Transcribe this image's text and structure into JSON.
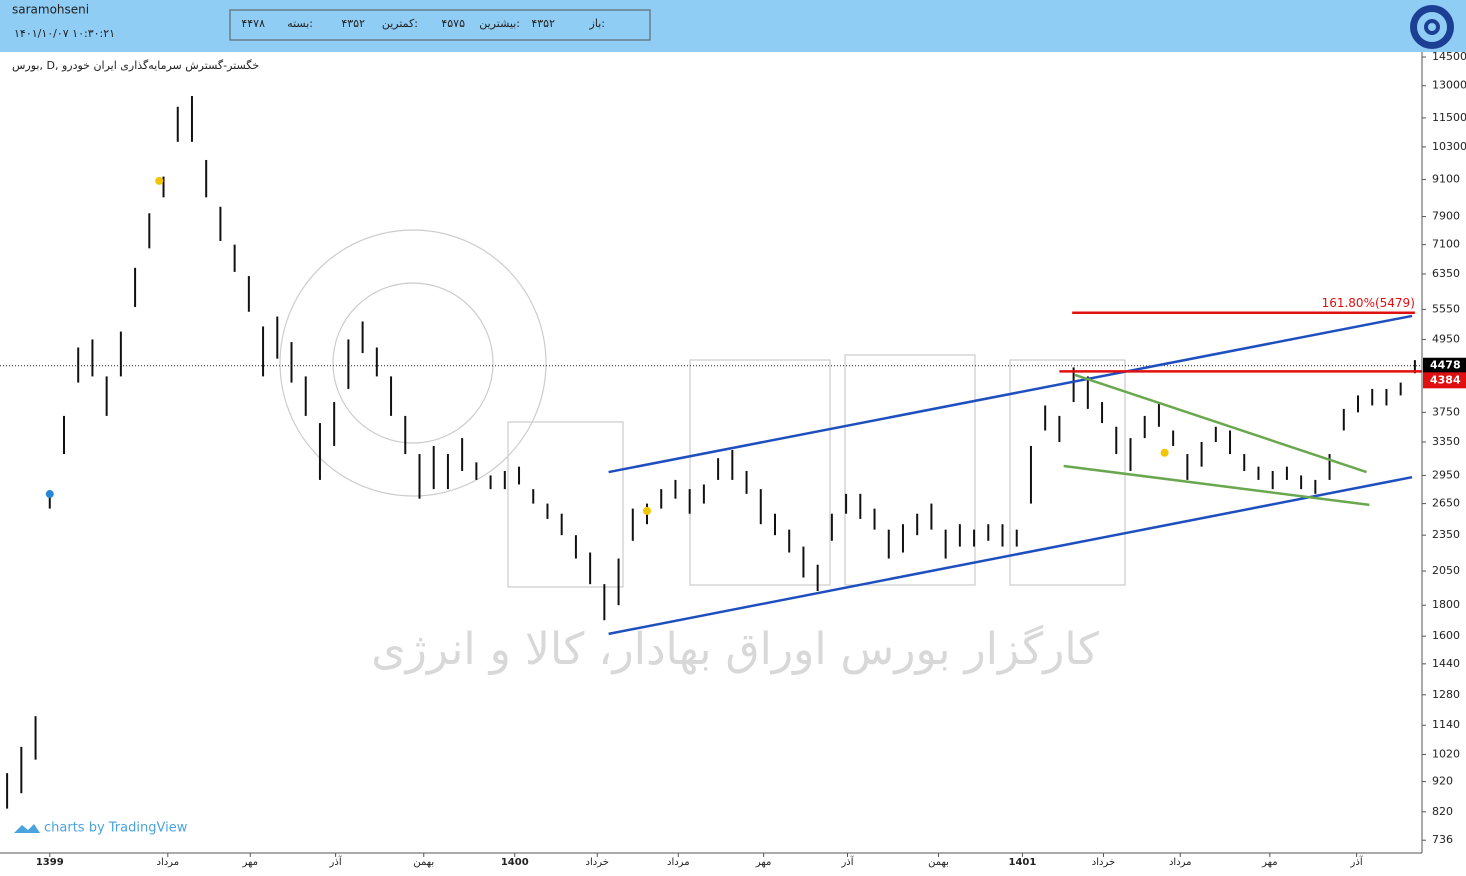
{
  "header": {
    "user": "saramohseni",
    "datetime": "۱۴۰۱/۱۰/۰۷ ۱۰:۳۰:۲۱",
    "stats": [
      {
        "label": "باز:",
        "value": "۴۳۵۲"
      },
      {
        "label": "بیشترین:",
        "value": "۴۵۷۵"
      },
      {
        "label": "کمترین:",
        "value": "۴۳۵۲"
      },
      {
        "label": "بسته:",
        "value": "۴۴۷۸"
      }
    ]
  },
  "watermark": "کارگزار بورس اوراق بهادار، کالا و انرژی",
  "branding": "charts by TradingView",
  "chart_data": {
    "type": "ohlc",
    "title": "بورس, D, خگستر-گسترش سرمایه‌گذاری ایران خودرو",
    "log_scale": true,
    "color": "#111111",
    "xlim": [
      0,
      100
    ],
    "ylim": [
      701,
      14780
    ],
    "xticks": [
      {
        "value": 3.5,
        "label": "1399"
      },
      {
        "value": 11.8,
        "label": "مرداد"
      },
      {
        "value": 17.6,
        "label": "مهر"
      },
      {
        "value": 23.6,
        "label": "آذر"
      },
      {
        "value": 29.8,
        "label": "بهمن"
      },
      {
        "value": 36.2,
        "label": "1400"
      },
      {
        "value": 42.0,
        "label": "خرداد"
      },
      {
        "value": 47.7,
        "label": "مرداد"
      },
      {
        "value": 53.7,
        "label": "مهر"
      },
      {
        "value": 59.6,
        "label": "آذر"
      },
      {
        "value": 66.0,
        "label": "بهمن"
      },
      {
        "value": 71.9,
        "label": "1401"
      },
      {
        "value": 77.6,
        "label": "خرداد"
      },
      {
        "value": 83.0,
        "label": "مرداد"
      },
      {
        "value": 89.3,
        "label": "مهر"
      },
      {
        "value": 95.4,
        "label": "آذر"
      }
    ],
    "yticks": [
      14500,
      13000,
      11500,
      10300,
      9100,
      7900,
      7100,
      6350,
      5550,
      4950,
      3750,
      3350,
      2950,
      2650,
      2350,
      2050,
      1800,
      1600,
      1440,
      1280,
      1140,
      1020,
      920,
      820,
      736
    ],
    "low": [
      830,
      880,
      1000,
      2600,
      3200,
      4200,
      4300,
      3700,
      4300,
      5600,
      7000,
      8500,
      10500,
      10500,
      8500,
      7200,
      6400,
      5500,
      4300,
      4600,
      4200,
      3700,
      2900,
      3300,
      4100,
      4700,
      4300,
      3700,
      3200,
      2700,
      2800,
      2800,
      3000,
      2900,
      2800,
      2800,
      2850,
      2650,
      2500,
      2350,
      2150,
      1950,
      1700,
      1800,
      2300,
      2450,
      2600,
      2700,
      2550,
      2650,
      2900,
      2900,
      2750,
      2450,
      2350,
      2200,
      2000,
      1900,
      2300,
      2550,
      2500,
      2400,
      2150,
      2200,
      2350,
      2400,
      2150,
      2250,
      2250,
      2300,
      2250,
      2250,
      2650,
      3500,
      3350,
      3900,
      3800,
      3600,
      3200,
      3000,
      3400,
      3550,
      3300,
      2900,
      3050,
      3350,
      3200,
      3000,
      2900,
      2800,
      2900,
      2800,
      2750,
      2900,
      3500,
      3750,
      3850,
      3850,
      4000,
      4352
    ],
    "high": [
      950,
      1050,
      1180,
      2780,
      3700,
      4800,
      4950,
      4300,
      5100,
      6500,
      8000,
      9200,
      12000,
      12500,
      9800,
      8200,
      7100,
      6300,
      5200,
      5400,
      4900,
      4300,
      3600,
      3900,
      4950,
      5300,
      4800,
      4300,
      3700,
      3200,
      3300,
      3200,
      3400,
      3100,
      2950,
      3000,
      3050,
      2800,
      2650,
      2550,
      2350,
      2200,
      1950,
      2150,
      2600,
      2650,
      2800,
      2900,
      2800,
      2850,
      3150,
      3250,
      3000,
      2800,
      2550,
      2400,
      2250,
      2100,
      2550,
      2750,
      2750,
      2600,
      2400,
      2450,
      2550,
      2650,
      2400,
      2450,
      2400,
      2450,
      2450,
      2400,
      3300,
      3850,
      3700,
      4450,
      4300,
      3900,
      3550,
      3400,
      3700,
      3900,
      3500,
      3200,
      3350,
      3550,
      3500,
      3200,
      3050,
      3000,
      3050,
      2950,
      2900,
      3200,
      3800,
      4000,
      4100,
      4100,
      4200,
      4575
    ],
    "last_price": 4478,
    "trendlines": [
      {
        "color": "#1f4fbf",
        "x": [
          42.8,
          99.3
        ],
        "y": [
          2988,
          5413
        ]
      },
      {
        "color": "#1f4fbf",
        "x": [
          42.8,
          99.3
        ],
        "y": [
          1614,
          2930
        ]
      },
      {
        "color": "#6aa84f",
        "x": [
          75.6,
          96.1
        ],
        "y": [
          4324,
          2988
        ]
      },
      {
        "color": "#6aa84f",
        "x": [
          74.8,
          96.3
        ],
        "y": [
          3058,
          2637
        ]
      }
    ],
    "levels": [
      {
        "value": 5479,
        "label": "161.80%(5479)",
        "color": "#e01010",
        "x": [
          75.4,
          99.5
        ]
      },
      {
        "value": 4384,
        "color": "#e01010",
        "x": [
          74.5,
          100
        ]
      }
    ],
    "markers": [
      {
        "x": 3.5,
        "y": 2748,
        "color": "#2a86d6"
      },
      {
        "x": 11.2,
        "y": 9050,
        "color": "#f2c500"
      },
      {
        "x": 45.5,
        "y": 2577,
        "color": "#f2c500"
      },
      {
        "x": 81.9,
        "y": 3215,
        "color": "#f2c500"
      }
    ]
  }
}
